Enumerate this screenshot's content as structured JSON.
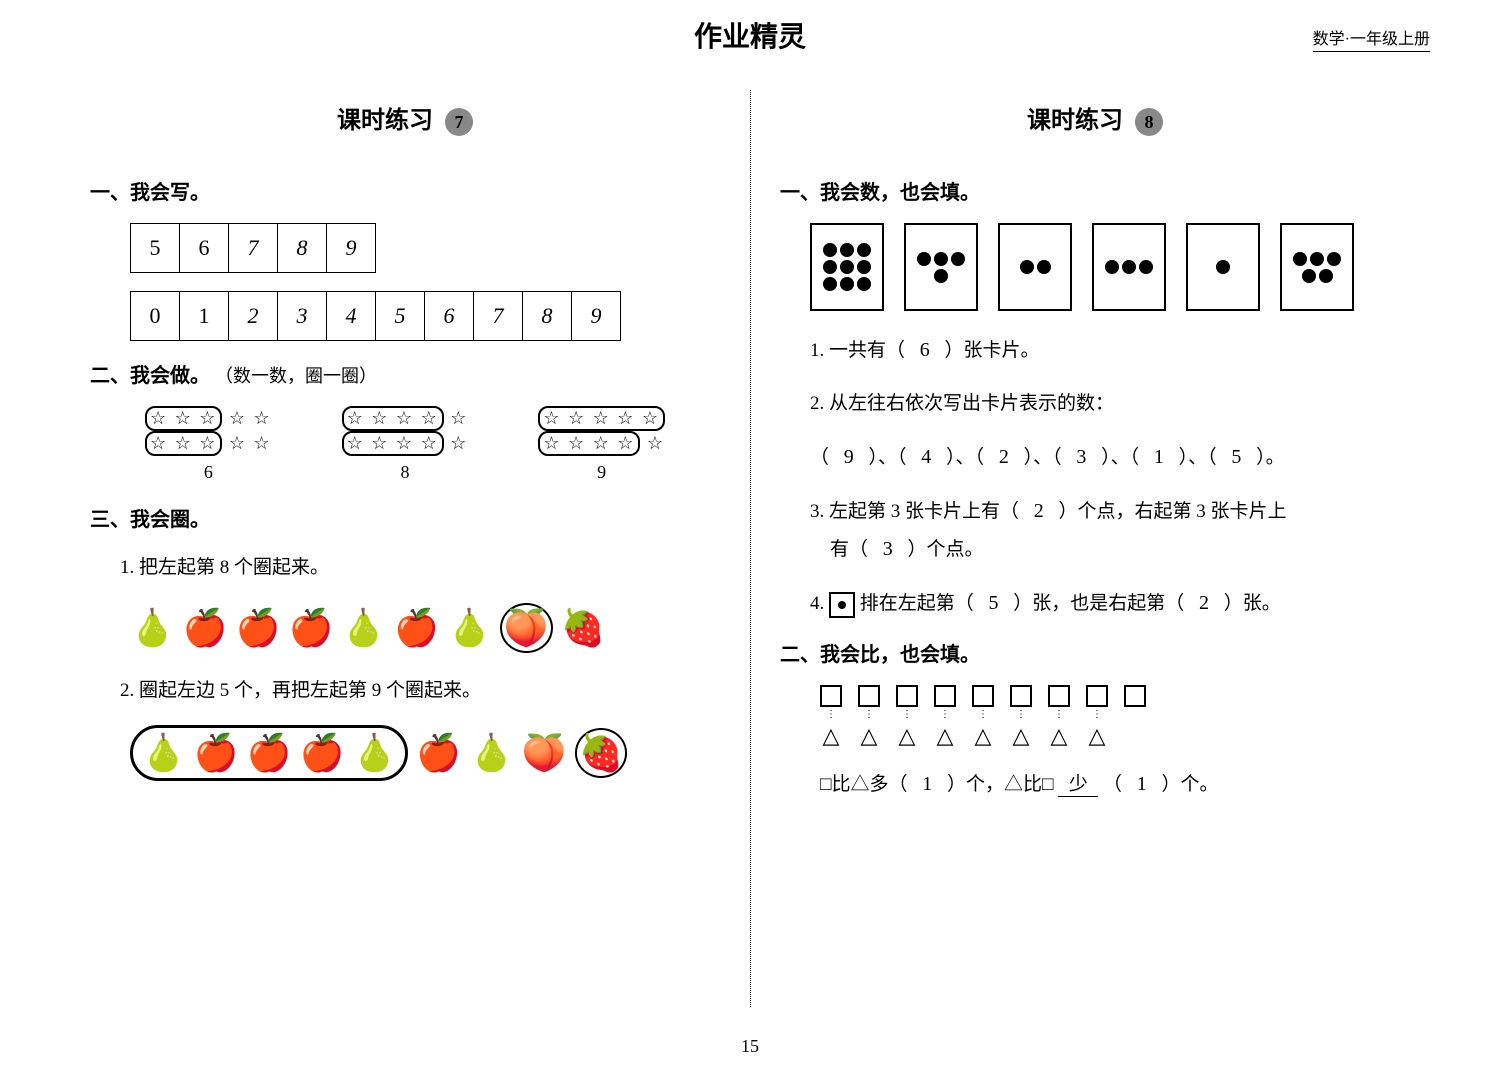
{
  "header": {
    "script_title": "作业精灵",
    "right_label": "数学·一年级上册"
  },
  "page_number": "15",
  "left": {
    "lesson_title": "课时练习",
    "lesson_number": "7",
    "s1": {
      "heading": "一、我会写。",
      "row1": [
        "5",
        "6",
        "7",
        "8",
        "9"
      ],
      "row2": [
        "0",
        "1",
        "2",
        "3",
        "4",
        "5",
        "6",
        "7",
        "8",
        "9"
      ]
    },
    "s2": {
      "heading": "二、我会做。",
      "note": "（数一数，圈一圈）",
      "groups": [
        {
          "label": "6"
        },
        {
          "label": "8"
        },
        {
          "label": "9"
        }
      ]
    },
    "s3": {
      "heading": "三、我会圈。",
      "q1": "1. 把左起第 8 个圈起来。",
      "q2": "2. 圈起左边 5 个，再把左起第 9 个圈起来。"
    }
  },
  "right": {
    "lesson_title": "课时练习",
    "lesson_number": "8",
    "s1": {
      "heading": "一、我会数，也会填。",
      "card_dots": [
        9,
        4,
        2,
        3,
        1,
        5
      ],
      "q1_pre": "1. 一共有（",
      "q1_ans": "6",
      "q1_post": "）张卡片。",
      "q2_label": "2. 从左往右依次写出卡片表示的数：",
      "q2_answers": [
        "9",
        "4",
        "2",
        "3",
        "1",
        "5"
      ],
      "q3_pre": "3. 左起第 3 张卡片上有（",
      "q3_ans1": "2",
      "q3_mid": "）个点，右起第 3 张卡片上",
      "q3_line2_pre": "有（",
      "q3_ans2": "3",
      "q3_line2_post": "）个点。",
      "q4_pre": "4. ",
      "q4_mid": " 排在左起第（",
      "q4_ans1": "5",
      "q4_mid2": "）张，也是右起第（",
      "q4_ans2": "2",
      "q4_post": "）张。"
    },
    "s2": {
      "heading": "二、我会比，也会填。",
      "squares": 9,
      "triangles": 8,
      "compare_pre": "□比△多（",
      "compare_ans1": "1",
      "compare_mid": "）个，△比□",
      "compare_word": "少",
      "compare_mid2": "（",
      "compare_ans2": "1",
      "compare_post": "）个。"
    }
  }
}
